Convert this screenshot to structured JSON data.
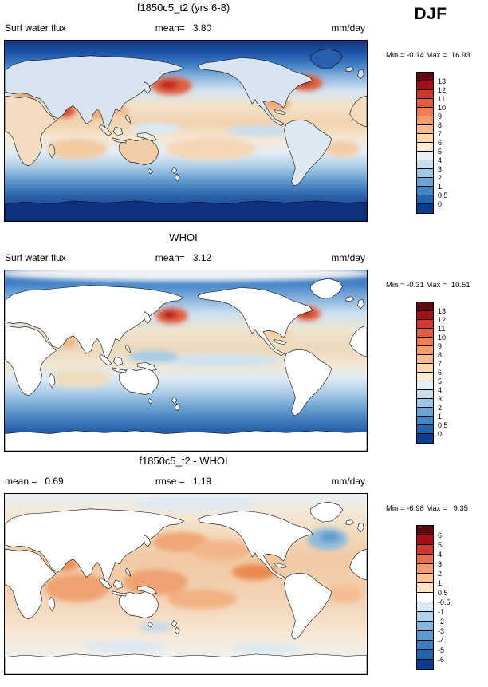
{
  "header": {
    "season_label": "DJF"
  },
  "panels": [
    {
      "title": "f1850c5_t2 (yrs 6-8)",
      "var_label": "Surf water flux",
      "mean_label": "mean=   3.80",
      "units": "mm/day",
      "minmax": "Min = -0.14 Max =  16.93",
      "colorbar": {
        "colors": [
          "#5e0812",
          "#a50f15",
          "#cb3a2a",
          "#e25d3e",
          "#ef7f52",
          "#f69d6b",
          "#fbbb88",
          "#fdd7ab",
          "#fcecd2",
          "#e7f0f8",
          "#c7ddf0",
          "#9cc7e5",
          "#6aa7d6",
          "#3f86c6",
          "#2166ac",
          "#0c3d8f"
        ],
        "labels": [
          "13",
          "12",
          "11",
          "10",
          "9",
          "8",
          "7",
          "6",
          "5",
          "4",
          "3",
          "2",
          "1",
          "0.5",
          "0"
        ]
      }
    },
    {
      "title": "WHOI",
      "var_label": "Surf water flux",
      "mean_label": "mean=   3.12",
      "units": "mm/day",
      "minmax": "Min = -0.31 Max =  10.51",
      "colorbar": {
        "colors": [
          "#5e0812",
          "#a50f15",
          "#cb3a2a",
          "#e25d3e",
          "#ef7f52",
          "#f69d6b",
          "#fbbb88",
          "#fdd7ab",
          "#fcecd2",
          "#e7f0f8",
          "#c7ddf0",
          "#9cc7e5",
          "#6aa7d6",
          "#3f86c6",
          "#2166ac",
          "#0c3d8f"
        ],
        "labels": [
          "13",
          "12",
          "11",
          "10",
          "9",
          "8",
          "7",
          "6",
          "5",
          "4",
          "3",
          "2",
          "1",
          "0.5",
          "0"
        ]
      }
    },
    {
      "title": "f1850c5_t2 - WHOI",
      "var_label": "mean =   0.69",
      "mean_label": "rmse =   1.19",
      "units": "mm/day",
      "minmax": "Min = -6.98 Max =   9.35",
      "colorbar": {
        "colors": [
          "#5e0812",
          "#a50f15",
          "#cb3a2a",
          "#e8714a",
          "#f69d6b",
          "#fbc18f",
          "#fde3c0",
          "#ffffff",
          "#d8e8f5",
          "#b0d2ea",
          "#85b8dd",
          "#5b9bcd",
          "#3a7fc1",
          "#2065aa",
          "#0c3d8f"
        ],
        "labels": [
          "6",
          "5",
          "4",
          "3",
          "2",
          "1",
          "0.5",
          "-0.5",
          "-1",
          "-2",
          "-3",
          "-4",
          "-5",
          "-6"
        ]
      }
    }
  ],
  "chart_data": [
    {
      "type": "heatmap",
      "title": "f1850c5_t2 (yrs 6-8)",
      "variable": "Surf water flux",
      "season": "DJF",
      "units": "mm/day",
      "mean": 3.8,
      "min": -0.14,
      "max": 16.93,
      "colorbar_levels": [
        0,
        0.5,
        1,
        2,
        3,
        4,
        5,
        6,
        7,
        8,
        9,
        10,
        11,
        12,
        13
      ],
      "palette": "dark-blue to white to dark-red, high values red",
      "layout": "global latitude-longitude map, Pacific-centered, colorbar at right"
    },
    {
      "type": "heatmap",
      "title": "WHOI",
      "variable": "Surf water flux",
      "season": "DJF",
      "units": "mm/day",
      "mean": 3.12,
      "min": -0.31,
      "max": 10.51,
      "colorbar_levels": [
        0,
        0.5,
        1,
        2,
        3,
        4,
        5,
        6,
        7,
        8,
        9,
        10,
        11,
        12,
        13
      ],
      "palette": "dark-blue to white to dark-red, land masked white",
      "layout": "global latitude-longitude map, Pacific-centered, colorbar at right"
    },
    {
      "type": "heatmap",
      "title": "f1850c5_t2 - WHOI",
      "variable": "Surf water flux difference",
      "season": "DJF",
      "units": "mm/day",
      "mean": 0.69,
      "rmse": 1.19,
      "min": -6.98,
      "max": 9.35,
      "colorbar_levels": [
        -6,
        -5,
        -4,
        -3,
        -2,
        -1,
        -0.5,
        0.5,
        1,
        2,
        3,
        4,
        5,
        6
      ],
      "palette": "diverging blue-white-red, mostly positive (orange) over oceans, blue anomaly in North Atlantic",
      "layout": "global latitude-longitude map, Pacific-centered, land masked white, colorbar at right"
    }
  ]
}
